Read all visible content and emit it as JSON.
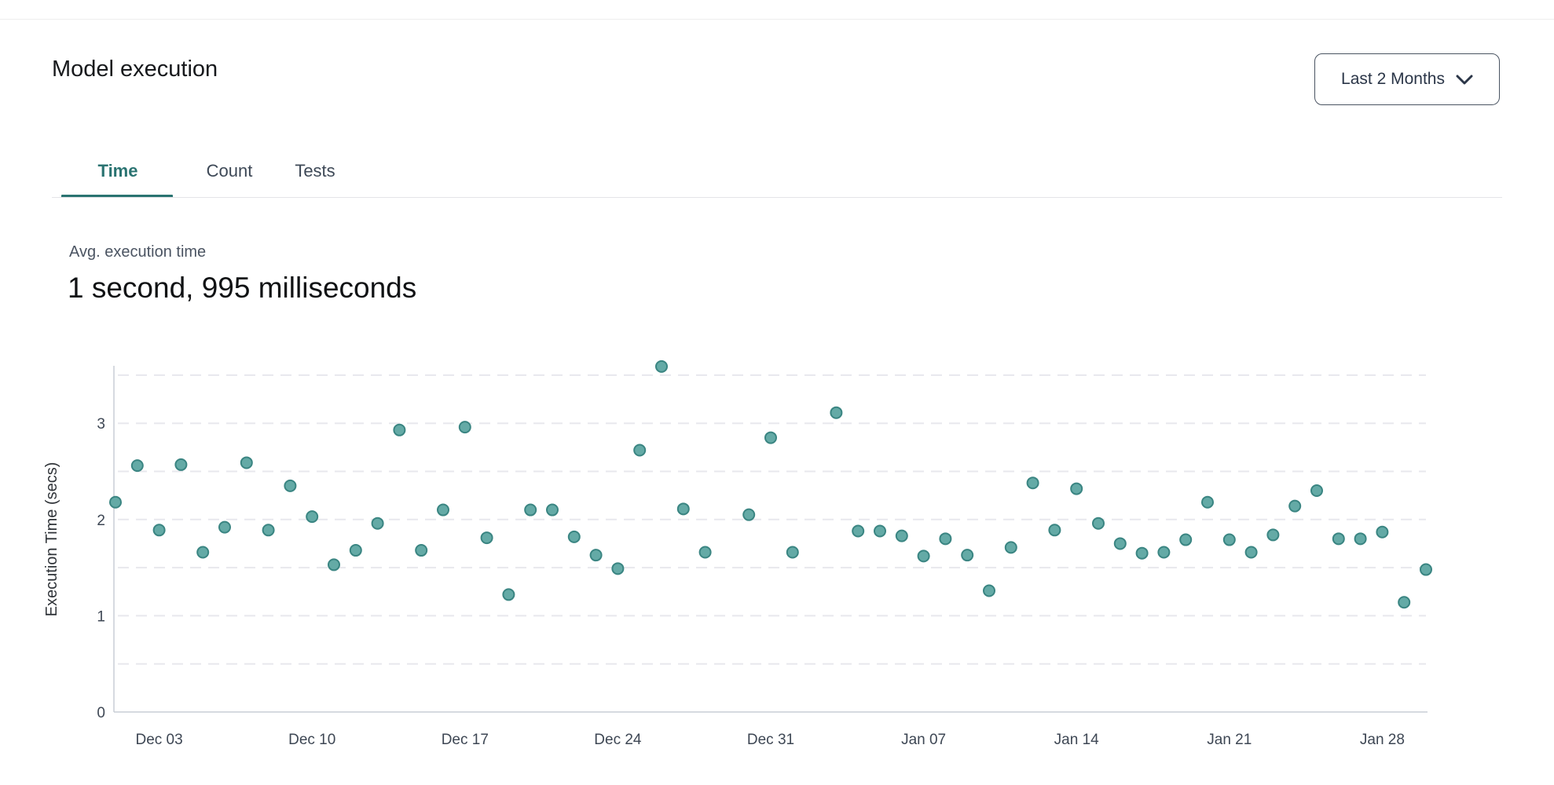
{
  "header": {
    "title": "Model execution",
    "range_selector": {
      "label": "Last 2 Months",
      "icon": "chevron-down-icon"
    }
  },
  "tabs": [
    {
      "label": "Time",
      "active": true
    },
    {
      "label": "Count",
      "active": false
    },
    {
      "label": "Tests",
      "active": false
    }
  ],
  "summary": {
    "label": "Avg. execution time",
    "value": "1 second, 995 milliseconds"
  },
  "colors": {
    "accent_teal": "#2a7371",
    "point_fill": "#64aaa6",
    "point_stroke": "#3a8582",
    "grid_line": "#e8e8ed",
    "axis_line": "#c9cdd5"
  },
  "chart_data": {
    "type": "scatter",
    "title": "",
    "xlabel": "",
    "ylabel": "Execution Time (secs)",
    "ylim": [
      0,
      3.6
    ],
    "y_ticks": [
      0,
      1,
      2,
      3
    ],
    "grid_values": [
      0.5,
      1,
      1.5,
      2,
      2.5,
      3,
      3.5
    ],
    "grid": "horizontal-dashed",
    "legend": "none",
    "x_unit": "day (offset from Dec 01)",
    "x_ticks": [
      {
        "day": 2,
        "label": "Dec 03"
      },
      {
        "day": 9,
        "label": "Dec 10"
      },
      {
        "day": 16,
        "label": "Dec 17"
      },
      {
        "day": 23,
        "label": "Dec 24"
      },
      {
        "day": 30,
        "label": "Dec 31"
      },
      {
        "day": 37,
        "label": "Jan 07"
      },
      {
        "day": 44,
        "label": "Jan 14"
      },
      {
        "day": 51,
        "label": "Jan 21"
      },
      {
        "day": 58,
        "label": "Jan 28"
      }
    ],
    "points": [
      [
        0,
        2.18
      ],
      [
        1,
        2.56
      ],
      [
        2,
        1.89
      ],
      [
        3,
        2.57
      ],
      [
        4,
        1.66
      ],
      [
        5,
        1.92
      ],
      [
        6,
        2.59
      ],
      [
        7,
        1.89
      ],
      [
        8,
        2.35
      ],
      [
        9,
        2.03
      ],
      [
        10,
        1.53
      ],
      [
        11,
        1.68
      ],
      [
        12,
        1.96
      ],
      [
        13,
        2.93
      ],
      [
        14,
        1.68
      ],
      [
        15,
        2.1
      ],
      [
        16,
        2.96
      ],
      [
        17,
        1.81
      ],
      [
        18,
        1.22
      ],
      [
        19,
        2.1
      ],
      [
        20,
        2.1
      ],
      [
        21,
        1.82
      ],
      [
        22,
        1.63
      ],
      [
        23,
        1.49
      ],
      [
        24,
        2.72
      ],
      [
        25,
        3.59
      ],
      [
        26,
        2.11
      ],
      [
        27,
        1.66
      ],
      [
        29,
        2.05
      ],
      [
        30,
        2.85
      ],
      [
        31,
        1.66
      ],
      [
        33,
        3.11
      ],
      [
        34,
        1.88
      ],
      [
        35,
        1.88
      ],
      [
        36,
        1.83
      ],
      [
        37,
        1.62
      ],
      [
        38,
        1.8
      ],
      [
        39,
        1.63
      ],
      [
        40,
        1.26
      ],
      [
        41,
        1.71
      ],
      [
        42,
        2.38
      ],
      [
        43,
        1.89
      ],
      [
        44,
        2.32
      ],
      [
        45,
        1.96
      ],
      [
        46,
        1.75
      ],
      [
        47,
        1.65
      ],
      [
        48,
        1.66
      ],
      [
        49,
        1.79
      ],
      [
        50,
        2.18
      ],
      [
        51,
        1.79
      ],
      [
        52,
        1.66
      ],
      [
        53,
        1.84
      ],
      [
        54,
        2.14
      ],
      [
        55,
        2.3
      ],
      [
        56,
        1.8
      ],
      [
        57,
        1.8
      ],
      [
        58,
        1.87
      ],
      [
        59,
        1.14
      ],
      [
        60,
        1.48
      ]
    ]
  }
}
